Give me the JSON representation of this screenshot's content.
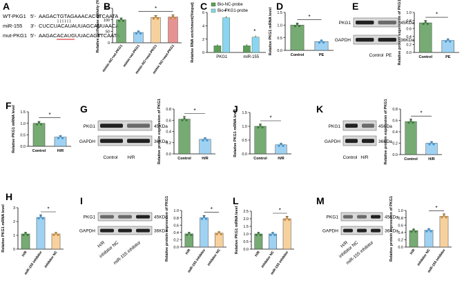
{
  "panel_letters": {
    "A": "A",
    "B": "B",
    "C": "C",
    "D": "D",
    "E": "E",
    "F": "F",
    "G": "G",
    "J": "J",
    "K": "K",
    "H": "H",
    "I": "I",
    "L": "L",
    "M": "M"
  },
  "colors": {
    "green": "#5e9c5b",
    "blue": "#8ecaf0",
    "orange": "#f6c98c",
    "red": "#e37f7f",
    "dark_green": "#3f7a3e",
    "dark_blue": "#3f94d0",
    "cyan_bar": "#8bd4f2"
  },
  "sequences": {
    "wt": {
      "label": "WT-PKG1",
      "prime5": "5'-",
      "seq": "AAGACTGTAGAAACACTTCAATA",
      "prime3": "-3'"
    },
    "mir": {
      "label": "miR-155",
      "prime3": "3'-",
      "seq": "CUCCUACAUAUUAGCAUUAACA",
      "prime5": "-5'"
    },
    "mut": {
      "label": "mut-PKG1",
      "prime5": "5'-",
      "seq": "AAGACACAUGUUACACTTCAATA",
      "prime3": "-3'"
    }
  },
  "blots": {
    "E": {
      "rows": [
        "PKG1",
        "GAPDH"
      ],
      "kda": [
        "45KDa",
        "36KDa"
      ],
      "lanes": [
        "Control",
        "PE"
      ]
    },
    "G": {
      "rows": [
        "PKG1",
        "GAPDH"
      ],
      "kda": [
        "45KDa",
        "36KDa"
      ],
      "lanes": [
        "Control",
        "H/R"
      ]
    },
    "K": {
      "rows": [
        "PKG1",
        "GAPDH"
      ],
      "kda": [
        "45KDa",
        "36KDa"
      ],
      "lanes": [
        "Control",
        "H/R"
      ]
    },
    "I": {
      "rows": [
        "PKG1",
        "GAPDH"
      ],
      "kda": [
        "45KDa",
        "36KDa"
      ],
      "lanes": [
        "H/R",
        "inhibitor NC",
        "miR-155 inhibitor"
      ]
    },
    "M": {
      "rows": [
        "PKG1",
        "GAPDH"
      ],
      "kda": [
        "45KDa",
        "36KDa"
      ],
      "lanes": [
        "H/R",
        "inhibitor NC",
        "miR-155 inhibitor"
      ]
    }
  },
  "chart_data": [
    {
      "id": "B",
      "type": "bar",
      "ylabel": "Relative luciferase activity (%)",
      "ylim": [
        0,
        150
      ],
      "yticks": [
        0,
        50,
        100,
        150
      ],
      "categories": [
        "mimic-NC+wt-PKG1",
        "mimic+wt-PKG1",
        "mimic-NC+mut-PKG1",
        "mimic NC+mut-PKG1"
      ],
      "values": [
        100,
        45,
        110,
        112
      ],
      "significance": "*"
    },
    {
      "id": "C",
      "type": "bar",
      "ylabel": "Relative RNA enrichment(%input)",
      "ylim": [
        0,
        6
      ],
      "yticks": [
        0,
        2,
        4,
        6
      ],
      "categories": [
        "PKG1",
        "miR-155"
      ],
      "series": [
        {
          "name": "Bio-NC-probe",
          "values": [
            1.0,
            1.0
          ]
        },
        {
          "name": "Bio-PKG1-probe",
          "values": [
            5.2,
            2.3
          ]
        }
      ],
      "significance": "*"
    },
    {
      "id": "D",
      "type": "bar",
      "ylabel": "Relative PKG1 mRNA level",
      "ylim": [
        0,
        1.5
      ],
      "yticks": [
        0.0,
        0.5,
        1.0,
        1.5
      ],
      "categories": [
        "Control",
        "PE"
      ],
      "values": [
        1.0,
        0.35
      ],
      "significance": "*"
    },
    {
      "id": "E",
      "type": "bar",
      "ylabel": "Relative protein expression of PKG1",
      "ylim": [
        0,
        1.0
      ],
      "yticks": [
        0.0,
        0.2,
        0.4,
        0.6,
        0.8,
        1.0
      ],
      "categories": [
        "Control",
        "PE"
      ],
      "values": [
        0.74,
        0.3
      ],
      "significance": "*"
    },
    {
      "id": "F",
      "type": "bar",
      "ylabel": "Relative PKG1 mRNA level",
      "ylim": [
        0,
        1.5
      ],
      "yticks": [
        0.0,
        0.5,
        1.0,
        1.5
      ],
      "categories": [
        "Control",
        "H/R"
      ],
      "values": [
        1.0,
        0.4
      ],
      "significance": "*"
    },
    {
      "id": "G",
      "type": "bar",
      "ylabel": "Relative protein expression of PKG1",
      "ylim": [
        0,
        0.8
      ],
      "yticks": [
        0.0,
        0.2,
        0.4,
        0.6,
        0.8
      ],
      "categories": [
        "Control",
        "H/R"
      ],
      "values": [
        0.62,
        0.26
      ],
      "significance": "*"
    },
    {
      "id": "J",
      "type": "bar",
      "ylabel": "Relative PKG1 mRNA level",
      "ylim": [
        0,
        1.5
      ],
      "yticks": [
        0.0,
        0.5,
        1.0,
        1.5
      ],
      "categories": [
        "Control",
        "H/R"
      ],
      "values": [
        1.0,
        0.33
      ],
      "significance": "*"
    },
    {
      "id": "K",
      "type": "bar",
      "ylabel": "Relative protein expression of PKG1",
      "ylim": [
        0,
        0.8
      ],
      "yticks": [
        0.0,
        0.2,
        0.4,
        0.6,
        0.8
      ],
      "categories": [
        "Control",
        "H/R"
      ],
      "values": [
        0.58,
        0.2
      ],
      "significance": "*"
    },
    {
      "id": "H",
      "type": "bar",
      "ylabel": "Relative PKG1 mRNA level",
      "ylim": [
        0,
        3
      ],
      "yticks": [
        0,
        1,
        2,
        3
      ],
      "categories": [
        "H/R",
        "miR-155 inhibitor",
        "inhibitor NC"
      ],
      "values": [
        1.1,
        2.3,
        1.1
      ],
      "significance": "*"
    },
    {
      "id": "I",
      "type": "bar",
      "ylabel": "Relative protein expression of PKG1",
      "ylim": [
        0,
        1.0
      ],
      "yticks": [
        0.0,
        0.2,
        0.4,
        0.6,
        0.8,
        1.0
      ],
      "categories": [
        "H/R",
        "miR-155 inhibitor",
        "inhibitor NC"
      ],
      "values": [
        0.36,
        0.8,
        0.38
      ],
      "significance": "*"
    },
    {
      "id": "L",
      "type": "bar",
      "ylabel": "Relative PKG1 mRNA level",
      "ylim": [
        0,
        2.5
      ],
      "yticks": [
        0.0,
        0.5,
        1.0,
        1.5,
        2.0,
        2.5
      ],
      "categories": [
        "H/R",
        "inhibitor NC",
        "miR-155 inhibitor"
      ],
      "values": [
        1.0,
        1.0,
        2.0
      ],
      "significance": "*"
    },
    {
      "id": "M",
      "type": "bar",
      "ylabel": "Relative protein expression of PKG1",
      "ylim": [
        0,
        1.0
      ],
      "yticks": [
        0.0,
        0.2,
        0.4,
        0.6,
        0.8,
        1.0
      ],
      "categories": [
        "H/R",
        "inhibitor NC",
        "miR-155 inhibitor"
      ],
      "values": [
        0.45,
        0.46,
        0.84
      ],
      "significance": "*"
    }
  ]
}
